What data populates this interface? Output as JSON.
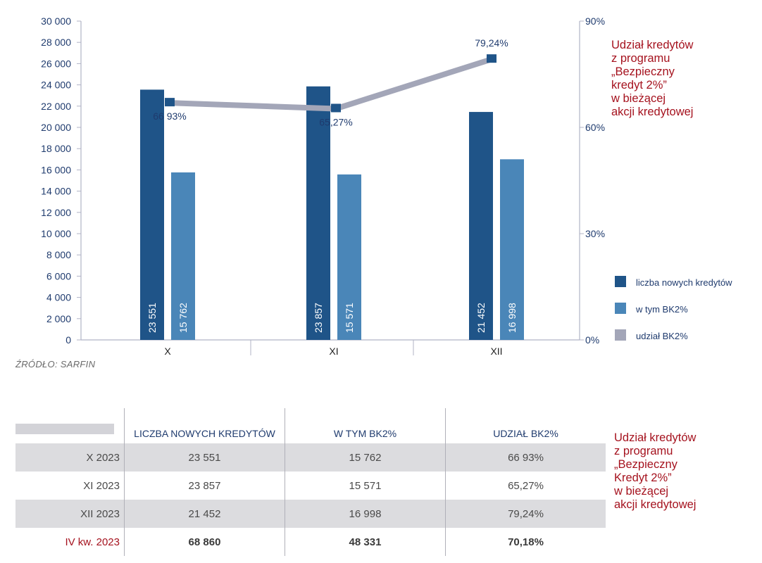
{
  "chart_data": {
    "type": "bar",
    "categories": [
      "X",
      "XI",
      "XII"
    ],
    "series": [
      {
        "name": "liczba nowych kredytów",
        "values": [
          23551,
          23857,
          21452
        ],
        "labels": [
          "23 551",
          "23 857",
          "21 452"
        ],
        "color": "#1f5488"
      },
      {
        "name": "w tym BK2%",
        "values": [
          15762,
          15571,
          16998
        ],
        "labels": [
          "15 762",
          "15 571",
          "16 998"
        ],
        "color": "#4a86b8"
      },
      {
        "name": "udział BK2%",
        "type": "line",
        "axis": "right",
        "values": [
          66.93,
          65.27,
          79.24
        ],
        "labels": [
          "66 93%",
          "65,27%",
          "79,24%"
        ],
        "color": "#a3a6b8"
      }
    ],
    "ylim": [
      0,
      30000
    ],
    "yticks": [
      "30 000",
      "28 000",
      "26 000",
      "24 000",
      "22 000",
      "20 000",
      "18 000",
      "16 000",
      "14 000",
      "12 000",
      "10 000",
      "8 000",
      "6 000",
      "4 000",
      "2 000",
      "0"
    ],
    "y2lim": [
      0,
      90
    ],
    "y2ticks": [
      "90%",
      "60%",
      "30%",
      "0%"
    ],
    "legend": "right",
    "grid": false
  },
  "side_title_top": "Udział kredytów\nz programu\n„Bezpieczny\nkredyt 2%”\nw bieżącej\nakcji kredytowej",
  "source": "ŹRÓDŁO: SARFIN",
  "table": {
    "headers": [
      "LICZBA NOWYCH KREDYTÓW",
      "W TYM BK2%",
      "UDZIAŁ BK2%"
    ],
    "rows": [
      {
        "label": "X 2023",
        "values": [
          "23 551",
          "15 762",
          "66 93%"
        ]
      },
      {
        "label": "XI 2023",
        "values": [
          "23 857",
          "15 571",
          "65,27%"
        ]
      },
      {
        "label": "XII 2023",
        "values": [
          "21 452",
          "16 998",
          "79,24%"
        ]
      },
      {
        "label": "IV kw. 2023",
        "values": [
          "68 860",
          "48 331",
          "70,18%"
        ]
      }
    ]
  },
  "side_title_bottom": "Udział kredytów\nz programu\n„Bezpieczny\nKredyt 2%”\nw bieżącej\nakcji kredytowej"
}
